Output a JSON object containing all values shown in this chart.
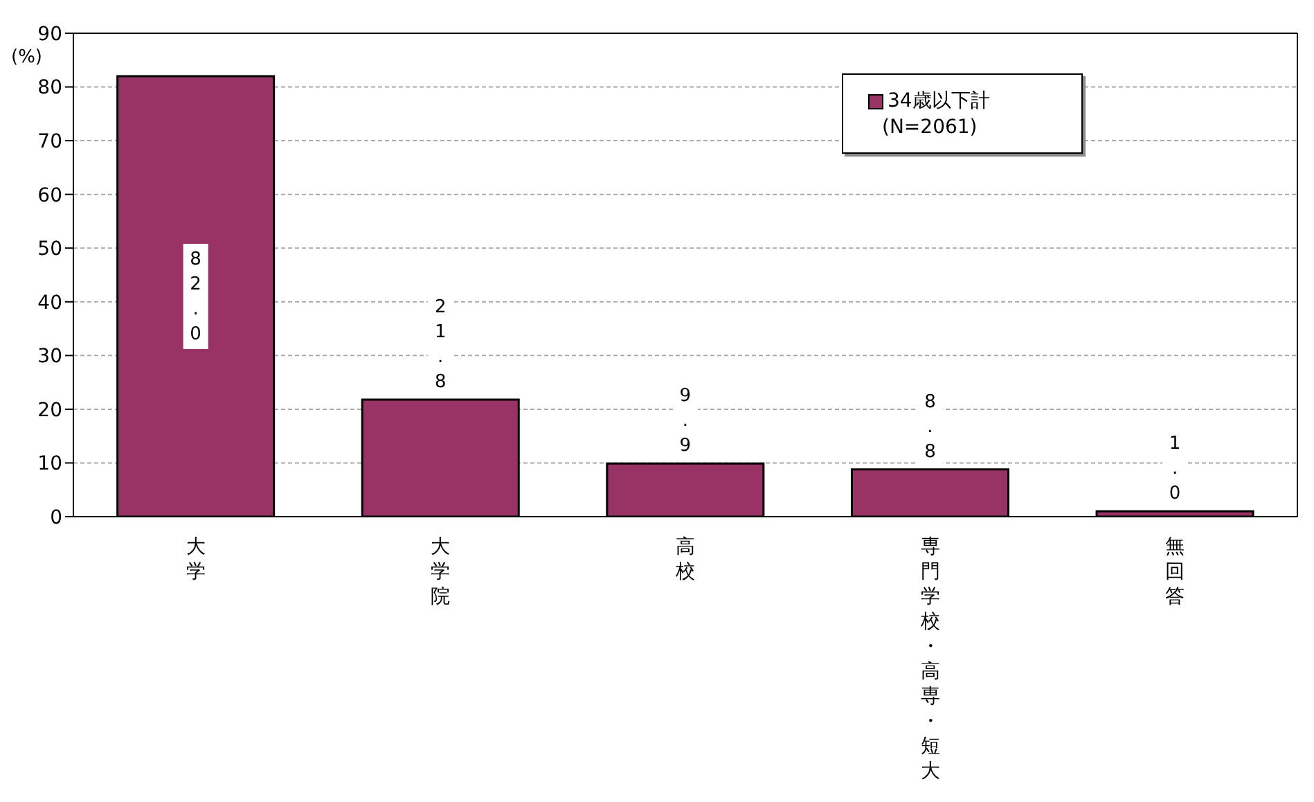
{
  "chart_data": {
    "type": "bar",
    "ylabel": "(%)",
    "categories": [
      "大学",
      "大学院",
      "高校",
      "専門学校・高専・短大",
      "無回答"
    ],
    "series": [
      {
        "name": "34歳以下計",
        "color": "#993366",
        "values": [
          82.0,
          21.8,
          9.9,
          8.8,
          1.0
        ],
        "value_labels": [
          "82.0",
          "21.8",
          "9.9",
          "8.8",
          "1.0"
        ]
      }
    ],
    "ylim": [
      0,
      90
    ],
    "yticks": [
      0,
      10,
      20,
      30,
      40,
      50,
      60,
      70,
      80,
      90
    ],
    "grid": "y",
    "legend": "top right",
    "annotations": [
      "(N=2061)"
    ]
  }
}
